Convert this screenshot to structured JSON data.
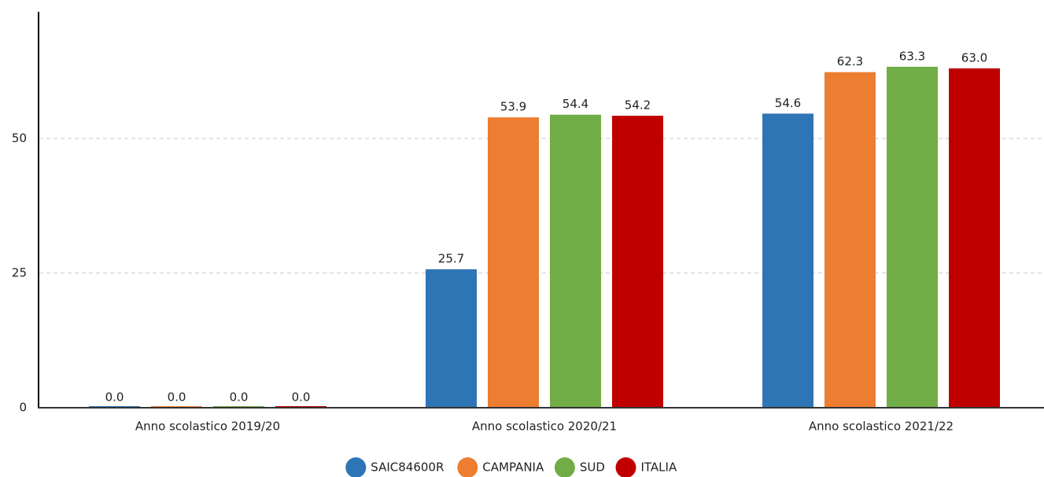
{
  "chart_data": {
    "type": "bar",
    "categories": [
      "Anno scolastico 2019/20",
      "Anno scolastico 2020/21",
      "Anno scolastico 2021/22"
    ],
    "series": [
      {
        "name": "SAIC84600R",
        "color": "#2e75b6",
        "values": [
          0.0,
          25.7,
          54.6
        ],
        "value_labels": [
          "0.0",
          "25.7",
          "54.6"
        ]
      },
      {
        "name": "CAMPANIA",
        "color": "#ed7d31",
        "values": [
          0.0,
          53.9,
          62.3
        ],
        "value_labels": [
          "0.0",
          "53.9",
          "62.3"
        ]
      },
      {
        "name": "SUD",
        "color": "#70ad47",
        "values": [
          0.0,
          54.4,
          63.3
        ],
        "value_labels": [
          "0.0",
          "54.4",
          "63.3"
        ]
      },
      {
        "name": "ITALIA",
        "color": "#c00000",
        "values": [
          0.0,
          54.2,
          63.0
        ],
        "value_labels": [
          "0.0",
          "54.2",
          "63.0"
        ]
      }
    ],
    "ylim": [
      0,
      73.5
    ],
    "yticks": [
      0,
      25,
      50
    ],
    "grid": true,
    "legend": "bottom"
  }
}
